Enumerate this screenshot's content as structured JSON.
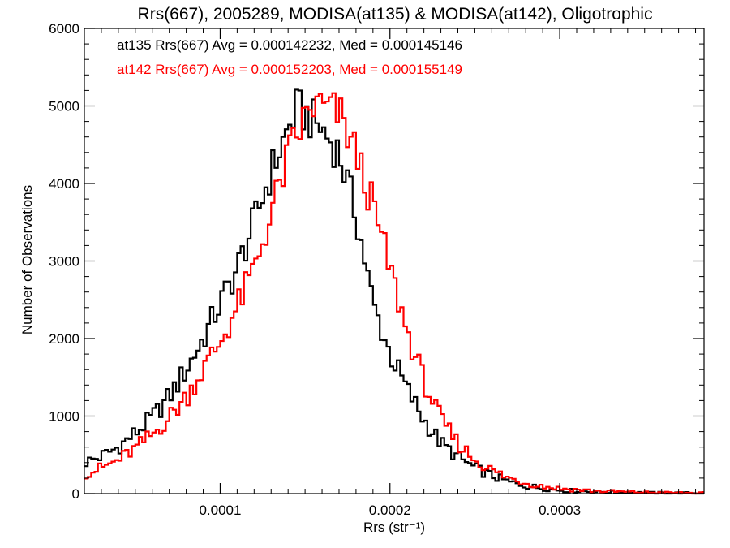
{
  "chart_data": {
    "type": "line",
    "title": "Rrs(667), 2005289, MODISA(at135) & MODISA(at142), Oligotrophic",
    "xlabel": "Rrs (str⁻¹)",
    "ylabel": "Number of Observations",
    "xlim": [
      2e-05,
      0.000385
    ],
    "ylim": [
      0,
      6000
    ],
    "x_ticks": [
      0.0001,
      0.0002,
      0.0003
    ],
    "x_tick_labels": [
      "0.0001",
      "0.0002",
      "0.0003"
    ],
    "y_ticks": [
      0,
      1000,
      2000,
      3000,
      4000,
      5000,
      6000
    ],
    "y_tick_labels": [
      "0",
      "1000",
      "2000",
      "3000",
      "4000",
      "5000",
      "6000"
    ],
    "grid": false,
    "legend_placement": "top-left",
    "annotations": [
      {
        "text": "at135 Rrs(667) Avg = 0.000142232, Med = 0.000145146",
        "color": "#000000"
      },
      {
        "text": "at142 Rrs(667) Avg = 0.000152203, Med = 0.000155149",
        "color": "#ff0000"
      }
    ],
    "series": [
      {
        "color": "#000000",
        "peak_x": 0.000145,
        "peak_y": 4950,
        "points": [
          [
            2e-05,
            400
          ],
          [
            3e-05,
            480
          ],
          [
            4e-05,
            600
          ],
          [
            5e-05,
            780
          ],
          [
            6e-05,
            980
          ],
          [
            7e-05,
            1250
          ],
          [
            8e-05,
            1600
          ],
          [
            9e-05,
            2000
          ],
          [
            0.0001,
            2450
          ],
          [
            0.00011,
            2900
          ],
          [
            0.00012,
            3500
          ],
          [
            0.00013,
            4150
          ],
          [
            0.00014,
            4700
          ],
          [
            0.000145,
            4950
          ],
          [
            0.00015,
            4900
          ],
          [
            0.00016,
            4700
          ],
          [
            0.00017,
            4400
          ],
          [
            0.00018,
            3600
          ],
          [
            0.00019,
            2450
          ],
          [
            0.0002,
            1800
          ],
          [
            0.00021,
            1350
          ],
          [
            0.00022,
            950
          ],
          [
            0.00023,
            650
          ],
          [
            0.00024,
            470
          ],
          [
            0.00025,
            330
          ],
          [
            0.00026,
            230
          ],
          [
            0.00027,
            150
          ],
          [
            0.00028,
            100
          ],
          [
            0.00029,
            70
          ],
          [
            0.0003,
            45
          ],
          [
            0.00032,
            25
          ],
          [
            0.00034,
            15
          ],
          [
            0.00036,
            8
          ],
          [
            0.000385,
            5
          ]
        ]
      },
      {
        "color": "#ff0000",
        "peak_x": 0.000155,
        "peak_y": 5000,
        "points": [
          [
            2e-05,
            250
          ],
          [
            3e-05,
            330
          ],
          [
            4e-05,
            430
          ],
          [
            5e-05,
            580
          ],
          [
            6e-05,
            760
          ],
          [
            7e-05,
            980
          ],
          [
            8e-05,
            1250
          ],
          [
            9e-05,
            1600
          ],
          [
            0.0001,
            1950
          ],
          [
            0.00011,
            2400
          ],
          [
            0.00012,
            2900
          ],
          [
            0.00013,
            3600
          ],
          [
            0.00014,
            4350
          ],
          [
            0.00015,
            4850
          ],
          [
            0.000155,
            5000
          ],
          [
            0.00016,
            4980
          ],
          [
            0.00017,
            4900
          ],
          [
            0.00018,
            4400
          ],
          [
            0.00019,
            3700
          ],
          [
            0.0002,
            2900
          ],
          [
            0.00021,
            2100
          ],
          [
            0.00022,
            1450
          ],
          [
            0.00023,
            950
          ],
          [
            0.00024,
            650
          ],
          [
            0.00025,
            440
          ],
          [
            0.00026,
            300
          ],
          [
            0.00027,
            200
          ],
          [
            0.00028,
            140
          ],
          [
            0.00029,
            95
          ],
          [
            0.0003,
            65
          ],
          [
            0.00032,
            35
          ],
          [
            0.00034,
            20
          ],
          [
            0.00036,
            12
          ],
          [
            0.000385,
            6
          ]
        ]
      }
    ]
  }
}
